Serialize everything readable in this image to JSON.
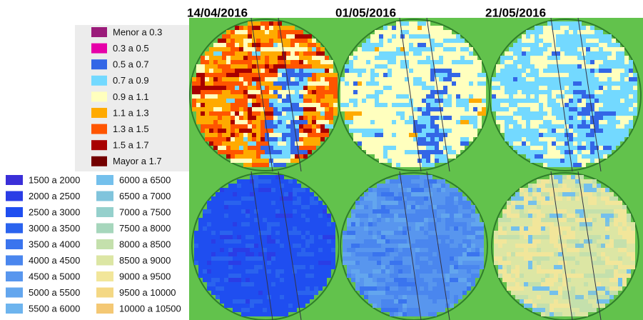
{
  "dates": [
    "14/04/2016",
    "01/05/2016",
    "21/05/2016"
  ],
  "legend_ratio": [
    {
      "label": "Menor a 0.3",
      "color": "#9b1b7a"
    },
    {
      "label": "0.3 a 0.5",
      "color": "#e600a9"
    },
    {
      "label": "0.5 a 0.7",
      "color": "#3366e6"
    },
    {
      "label": "0.7 a 0.9",
      "color": "#73d9ff"
    },
    {
      "label": "0.9 a 1.1",
      "color": "#ffffbe"
    },
    {
      "label": "1.1 a 1.3",
      "color": "#ffaa00"
    },
    {
      "label": "1.3 a 1.5",
      "color": "#ff5500"
    },
    {
      "label": "1.5 a 1.7",
      "color": "#a80000"
    },
    {
      "label": "Mayor a 1.7",
      "color": "#730000"
    }
  ],
  "legend_range": [
    {
      "label": "1500 a 2000",
      "color": "#3a2fd8"
    },
    {
      "label": "2000 a 2500",
      "color": "#2a3de6"
    },
    {
      "label": "2500 a 3000",
      "color": "#1f4ef0"
    },
    {
      "label": "3000 a 3500",
      "color": "#2a63ee"
    },
    {
      "label": "3500 a 4000",
      "color": "#3a74ee"
    },
    {
      "label": "4000 a 4500",
      "color": "#4a86ee"
    },
    {
      "label": "4500 a 5000",
      "color": "#5896ee"
    },
    {
      "label": "5000 a 5500",
      "color": "#63a6ee"
    },
    {
      "label": "5500 a 6000",
      "color": "#6db4ee"
    },
    {
      "label": "6000 a 6500",
      "color": "#74c0ec"
    },
    {
      "label": "6500 a 7000",
      "color": "#80c4dc"
    },
    {
      "label": "7000 a 7500",
      "color": "#95d0cc"
    },
    {
      "label": "7500 a 8000",
      "color": "#a6d6bc"
    },
    {
      "label": "8000 a 8500",
      "color": "#c4e0ac"
    },
    {
      "label": "8500 a 9000",
      "color": "#dce6a4"
    },
    {
      "label": "9000 a 9500",
      "color": "#f2e69a"
    },
    {
      "label": "9500 a 10000",
      "color": "#f4d884"
    },
    {
      "label": "10000 a 10500",
      "color": "#f4c874"
    }
  ]
}
